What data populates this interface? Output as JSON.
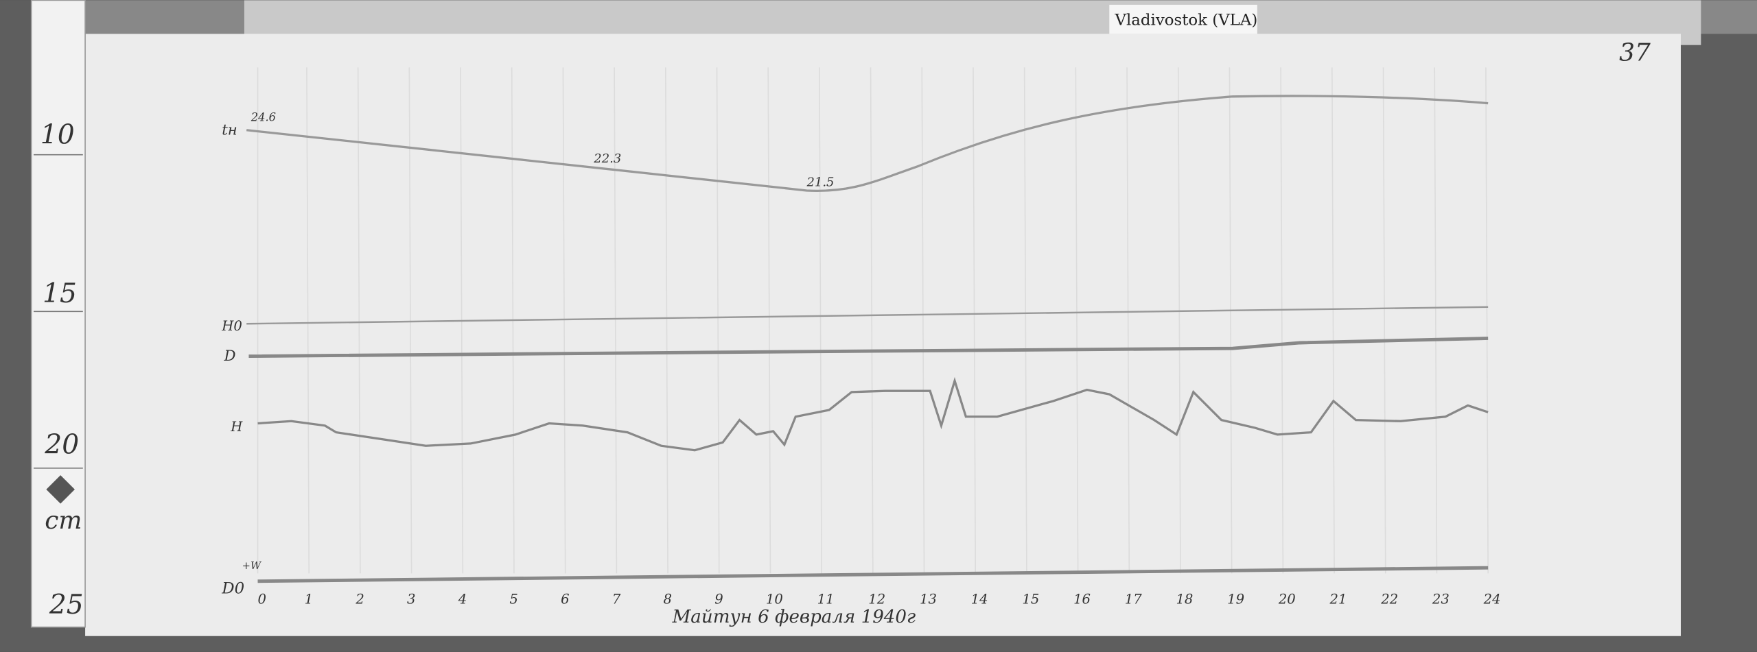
{
  "label_tag": "Vladivostok (VLA)",
  "page_number": "37",
  "ruler": {
    "marks": [
      "10",
      "15",
      "20",
      "25"
    ],
    "unit": "cm"
  },
  "traces": {
    "temperature_label": "tн",
    "temperature_values": [
      "24.6",
      "22.3",
      "21.5"
    ],
    "h0_label": "H0",
    "d_label": "D",
    "h_label": "H",
    "d0_label": "D0",
    "w_label": "+W"
  },
  "hours": [
    "0",
    "1",
    "2",
    "3",
    "4",
    "5",
    "6",
    "7",
    "8",
    "9",
    "10",
    "11",
    "12",
    "13",
    "14",
    "15",
    "16",
    "17",
    "18",
    "19",
    "20",
    "21",
    "22",
    "23",
    "24"
  ],
  "caption": "Майтун 6 февраля 1940г",
  "colors": {
    "paper": "#ededed",
    "trace": "#8a8a8a",
    "background": "#5a5a5a"
  }
}
